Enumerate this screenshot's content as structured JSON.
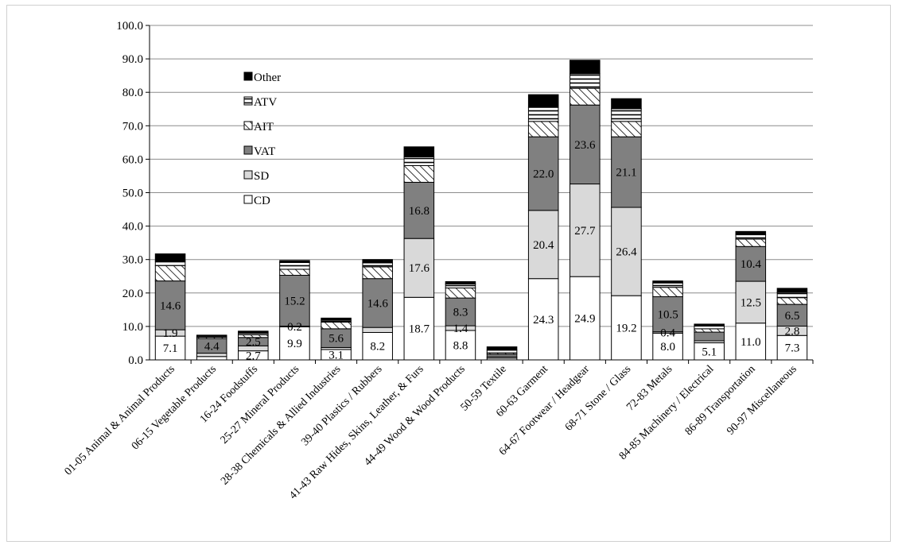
{
  "chart_data": {
    "type": "bar",
    "stacked": true,
    "title": "",
    "xlabel": "",
    "ylabel": "",
    "ylim": [
      0,
      100
    ],
    "yticks": [
      "0.0",
      "10.0",
      "20.0",
      "30.0",
      "40.0",
      "50.0",
      "60.0",
      "70.0",
      "80.0",
      "90.0",
      "100.0"
    ],
    "grid": true,
    "legend_position": "upper-left inside plot, listed top to bottom: Other, ATV, AIT, VAT, SD, CD",
    "categories": [
      "01-05  Animal & Animal Products",
      "06-15  Vegetable Products",
      "16-24  Foodstuffs",
      "25-27  Mineral Products",
      "28-38  Chemicals & Allied Industries",
      "39-40  Plastics / Rubbers",
      "41-43  Raw Hides, Skins, Leather, & Furs",
      "44-49  Wood & Wood Products",
      "50-59  Textile",
      "60-63  Garment",
      "64-67  Footwear / Headgear",
      "68-71  Stone / Glass",
      "72-83  Metals",
      "84-85  Machinery / Electrical",
      "86-89  Transportation",
      "90-97  Miscellaneous"
    ],
    "series": [
      {
        "name": "CD",
        "fill": "#ffffff",
        "pattern": "solid",
        "values": [
          7.1,
          1.0,
          2.7,
          9.9,
          3.1,
          8.2,
          18.7,
          8.8,
          0.5,
          24.3,
          24.9,
          19.2,
          8.0,
          5.1,
          11.0,
          7.3
        ],
        "labels": [
          "7.1",
          "",
          "2.7",
          "9.9",
          "3.1",
          "8.2",
          "18.7",
          "8.8",
          "",
          "24.3",
          "24.9",
          "19.2",
          "8.0",
          "5.1",
          "11.0",
          "7.3"
        ]
      },
      {
        "name": "SD",
        "fill": "#d9d9d9",
        "pattern": "solid",
        "values": [
          1.9,
          1.0,
          1.5,
          0.2,
          0.6,
          1.5,
          17.6,
          1.4,
          0.4,
          20.4,
          27.7,
          26.4,
          0.4,
          0.6,
          12.5,
          2.8
        ],
        "labels": [
          "1.9",
          "",
          "",
          "0.2",
          "",
          "",
          "17.6",
          "1.4",
          "",
          "20.4",
          "27.7",
          "26.4",
          "0.4",
          "",
          "12.5",
          "2.8"
        ]
      },
      {
        "name": "VAT",
        "fill": "#808080",
        "pattern": "solid",
        "values": [
          14.6,
          4.4,
          2.5,
          15.2,
          5.6,
          14.6,
          16.8,
          8.3,
          0.8,
          22.0,
          23.6,
          21.1,
          10.5,
          2.6,
          10.4,
          6.5
        ],
        "labels": [
          "14.6",
          "4.4",
          "2.5",
          "15.2",
          "5.6",
          "14.6",
          "16.8",
          "8.3",
          "",
          "22.0",
          "23.6",
          "21.1",
          "10.5",
          "",
          "10.4",
          "6.5"
        ]
      },
      {
        "name": "AIT",
        "fill": "#ffffff",
        "pattern": "hatch",
        "values": [
          4.6,
          0.4,
          0.8,
          1.8,
          2.0,
          3.5,
          5.0,
          3.0,
          0.4,
          4.6,
          5.0,
          4.6,
          2.8,
          1.0,
          2.2,
          2.0
        ],
        "labels": []
      },
      {
        "name": "ATV",
        "fill": "#ffffff",
        "pattern": "stripes",
        "values": [
          1.3,
          0.3,
          0.6,
          2.0,
          0.6,
          1.2,
          2.6,
          1.2,
          0.8,
          4.2,
          4.4,
          3.8,
          1.3,
          0.8,
          1.3,
          1.6
        ],
        "labels": []
      },
      {
        "name": "Other",
        "fill": "#000000",
        "pattern": "solid",
        "values": [
          2.2,
          0.3,
          0.5,
          0.6,
          0.6,
          1.0,
          3.0,
          0.7,
          1.0,
          3.8,
          4.0,
          3.0,
          0.6,
          0.6,
          1.0,
          1.2
        ],
        "labels": []
      }
    ]
  }
}
